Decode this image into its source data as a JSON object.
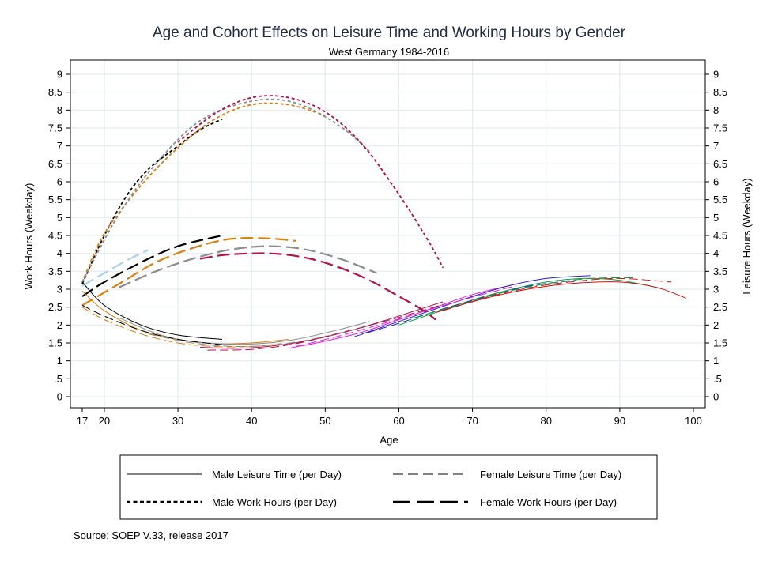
{
  "chart_data": {
    "type": "line",
    "title": "Age and Cohort Effects on Leisure Time and Working Hours by Gender",
    "subtitle": "West Germany 1984-2016",
    "xlabel": "Age",
    "ylabel_left": "Work Hours (Weekday)",
    "ylabel_right": "Leisure Hours (Weekday)",
    "xlim": [
      17,
      100
    ],
    "ylim": [
      -0.6,
      9.4
    ],
    "x_ticks": [
      17,
      20,
      30,
      40,
      50,
      60,
      70,
      80,
      90,
      100
    ],
    "x_tick_labels": [
      "17",
      "20",
      "30",
      "40",
      "50",
      "60",
      "70",
      "80",
      "90",
      "100"
    ],
    "y_ticks": [
      0,
      0.5,
      1,
      1.5,
      2,
      2.5,
      3,
      3.5,
      4,
      4.5,
      5,
      5.5,
      6,
      6.5,
      7,
      7.5,
      8,
      8.5,
      9
    ],
    "y_tick_labels": [
      "0",
      ".5",
      "1",
      "1.5",
      "2",
      "2.5",
      "3",
      "3.5",
      "4",
      "4.5",
      "5",
      "5.5",
      "6",
      "6.5",
      "7",
      "7.5",
      "8",
      "8.5",
      "9"
    ],
    "grid": true,
    "legend": {
      "placement": "bottom",
      "items": [
        {
          "label": "Male Leisure Time (per Day)",
          "style": "thin-solid"
        },
        {
          "label": "Female Leisure Time (per Day)",
          "style": "thin-long-dash"
        },
        {
          "label": "Male Work Hours (per Day)",
          "style": "thick-short-dash"
        },
        {
          "label": "Female Work Hours (per Day)",
          "style": "thick-long-dash"
        }
      ]
    },
    "series": [
      {
        "group": "male-work",
        "color": "#000000",
        "x": [
          17,
          20,
          23,
          26,
          30,
          33,
          36
        ],
        "y": [
          3.15,
          4.5,
          5.6,
          6.35,
          7.0,
          7.45,
          7.75
        ]
      },
      {
        "group": "male-work",
        "color": "#d97f0e",
        "x": [
          17,
          20,
          25,
          30,
          35,
          40,
          45,
          50
        ],
        "y": [
          3.2,
          4.55,
          5.9,
          6.95,
          7.75,
          8.15,
          8.15,
          7.85
        ]
      },
      {
        "group": "male-work",
        "color": "#8c8c8c",
        "x": [
          17,
          22,
          27,
          33,
          40,
          46,
          52,
          56
        ],
        "y": [
          3.2,
          5.1,
          6.5,
          7.7,
          8.25,
          8.2,
          7.55,
          6.85
        ]
      },
      {
        "group": "male-work",
        "color": "#b0124f",
        "x": [
          30,
          35,
          40,
          45,
          50,
          55,
          60,
          64,
          66
        ],
        "y": [
          7.1,
          7.9,
          8.35,
          8.35,
          7.95,
          7.05,
          5.65,
          4.35,
          3.6
        ]
      },
      {
        "group": "female-work",
        "color": "#a9d2ec",
        "x": [
          17,
          20,
          23,
          26
        ],
        "y": [
          3.1,
          3.45,
          3.8,
          4.1
        ]
      },
      {
        "group": "female-work",
        "color": "#000000",
        "x": [
          17,
          20,
          25,
          30,
          36
        ],
        "y": [
          2.8,
          3.2,
          3.75,
          4.2,
          4.5
        ]
      },
      {
        "group": "female-work",
        "color": "#d97f0e",
        "x": [
          17,
          22,
          27,
          32,
          37,
          42,
          46
        ],
        "y": [
          2.55,
          3.15,
          3.75,
          4.15,
          4.4,
          4.42,
          4.35
        ]
      },
      {
        "group": "female-work",
        "color": "#8c8c8c",
        "x": [
          22,
          27,
          32,
          37,
          42,
          47,
          52,
          57
        ],
        "y": [
          3.05,
          3.5,
          3.85,
          4.1,
          4.2,
          4.12,
          3.85,
          3.45
        ]
      },
      {
        "group": "female-work",
        "color": "#b0124f",
        "x": [
          33,
          36,
          40,
          44,
          48,
          52,
          56,
          60,
          63,
          65
        ],
        "y": [
          3.85,
          3.95,
          4.0,
          3.98,
          3.85,
          3.6,
          3.25,
          2.8,
          2.45,
          2.15
        ]
      },
      {
        "group": "male-leisure",
        "color": "#000000",
        "x": [
          17,
          20,
          25,
          30,
          36
        ],
        "y": [
          3.2,
          2.55,
          2.0,
          1.72,
          1.6
        ]
      },
      {
        "group": "male-leisure",
        "color": "#d97f0e",
        "x": [
          17,
          20,
          25,
          30,
          35,
          40,
          45
        ],
        "y": [
          2.95,
          2.4,
          1.85,
          1.6,
          1.48,
          1.5,
          1.6
        ]
      },
      {
        "group": "male-leisure",
        "color": "#8c8c8c",
        "x": [
          22,
          28,
          34,
          40,
          46,
          52,
          56
        ],
        "y": [
          2.2,
          1.7,
          1.5,
          1.47,
          1.6,
          1.88,
          2.1
        ]
      },
      {
        "group": "male-leisure",
        "color": "#b0124f",
        "x": [
          33,
          38,
          43,
          48,
          53,
          58,
          63,
          66
        ],
        "y": [
          1.38,
          1.35,
          1.42,
          1.58,
          1.82,
          2.12,
          2.45,
          2.65
        ]
      },
      {
        "group": "male-leisure",
        "color": "#e020e0",
        "x": [
          45,
          50,
          55,
          60,
          65,
          70,
          76
        ],
        "y": [
          1.35,
          1.55,
          1.8,
          2.15,
          2.5,
          2.85,
          3.15
        ]
      },
      {
        "group": "male-leisure",
        "color": "#2222cc",
        "x": [
          55,
          60,
          65,
          70,
          75,
          80,
          86
        ],
        "y": [
          1.75,
          2.1,
          2.45,
          2.8,
          3.1,
          3.3,
          3.38
        ]
      },
      {
        "group": "male-leisure",
        "color": "#10a040",
        "x": [
          60,
          65,
          70,
          75,
          80,
          85,
          90,
          95
        ],
        "y": [
          2.0,
          2.35,
          2.7,
          2.98,
          3.2,
          3.3,
          3.25,
          3.05
        ]
      },
      {
        "group": "male-leisure",
        "color": "#cc1111",
        "x": [
          65,
          70,
          75,
          80,
          85,
          90,
          95,
          99
        ],
        "y": [
          2.35,
          2.65,
          2.9,
          3.08,
          3.18,
          3.2,
          3.05,
          2.75
        ]
      },
      {
        "group": "female-leisure",
        "color": "#000000",
        "x": [
          17,
          20,
          25,
          30,
          36
        ],
        "y": [
          2.55,
          2.25,
          1.85,
          1.6,
          1.45
        ]
      },
      {
        "group": "female-leisure",
        "color": "#d97f0e",
        "x": [
          17,
          20,
          25,
          30,
          35,
          40,
          44
        ],
        "y": [
          2.5,
          2.15,
          1.75,
          1.5,
          1.4,
          1.4,
          1.48
        ]
      },
      {
        "group": "female-leisure",
        "color": "#8c8c8c",
        "x": [
          26,
          32,
          38,
          44,
          50,
          56
        ],
        "y": [
          1.75,
          1.5,
          1.4,
          1.47,
          1.68,
          1.98
        ]
      },
      {
        "group": "female-leisure",
        "color": "#b0124f",
        "x": [
          34,
          40,
          46,
          52,
          58,
          64,
          66
        ],
        "y": [
          1.3,
          1.32,
          1.48,
          1.78,
          2.1,
          2.45,
          2.58
        ]
      },
      {
        "group": "female-leisure",
        "color": "#e020e0",
        "x": [
          46,
          52,
          58,
          64,
          70,
          76
        ],
        "y": [
          1.4,
          1.7,
          2.05,
          2.42,
          2.78,
          3.1
        ]
      },
      {
        "group": "female-leisure",
        "color": "#2222cc",
        "x": [
          54,
          60,
          66,
          72,
          78,
          84
        ],
        "y": [
          1.68,
          2.05,
          2.45,
          2.8,
          3.1,
          3.25
        ]
      },
      {
        "group": "female-leisure",
        "color": "#10a040",
        "x": [
          62,
          68,
          74,
          80,
          86,
          92
        ],
        "y": [
          2.2,
          2.55,
          2.9,
          3.15,
          3.3,
          3.32
        ]
      },
      {
        "group": "female-leisure",
        "color": "#cc1111",
        "x": [
          66,
          72,
          78,
          84,
          90,
          97
        ],
        "y": [
          2.4,
          2.78,
          3.05,
          3.22,
          3.3,
          3.2
        ]
      }
    ]
  },
  "source": "Source: SOEP V.33, release 2017"
}
